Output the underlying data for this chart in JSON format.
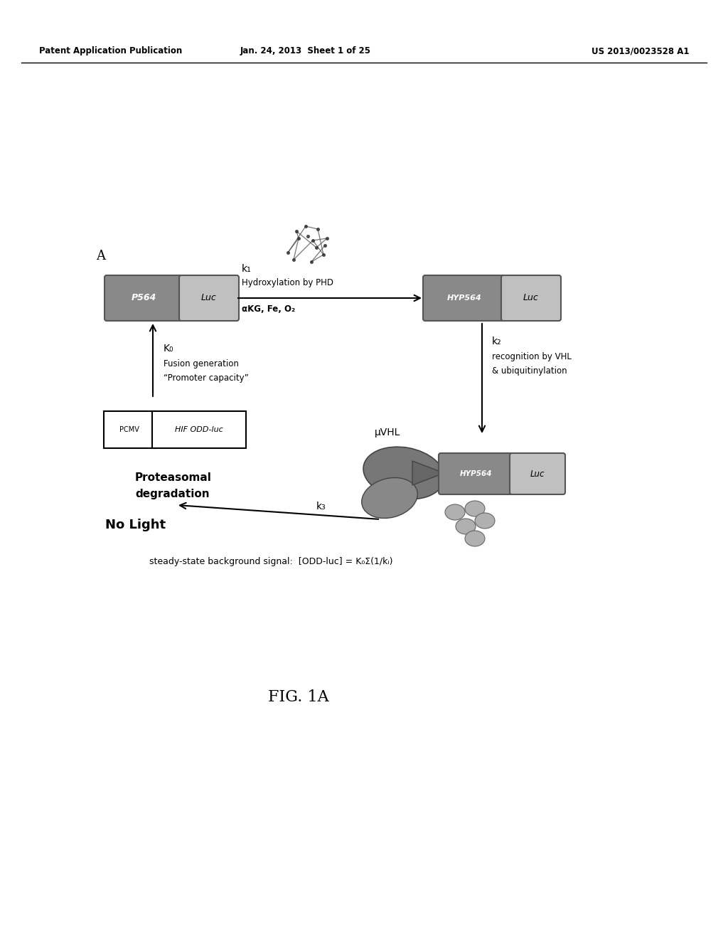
{
  "header_left": "Patent Application Publication",
  "header_middle": "Jan. 24, 2013  Sheet 1 of 25",
  "header_right": "US 2013/0023528 A1",
  "label_A": "A",
  "fig_label": "FIG. 1A",
  "bg_color": "#ffffff",
  "text_color": "#000000",
  "box_dark_color": "#898989",
  "box_mid_color": "#aaaaaa",
  "box_light_color": "#c0c0c0",
  "k1_label": "k₁",
  "k1_text1": "Hydroxylation by PHD",
  "k1_text2": "αKG, Fe, O₂",
  "k0_label": "K₀",
  "k0_text1": "Fusion generation",
  "k0_text2": "“Promoter capacity”",
  "k2_label": "k₂",
  "k2_text1": "recognition by VHL",
  "k2_text2": "& ubiquitinylation",
  "k3_label": "k₃",
  "k3_text1": "Proteasomal",
  "k3_text2": "degradation",
  "pvhl_label": "μVHL",
  "no_light_label": "No Light",
  "steady_state_text": "steady-state background signal:  [ODD-luc] = K₀Σ(1/kᵢ)",
  "p564_label": "P564",
  "luc_label1": "Luc",
  "hyp564_label": "HYP564",
  "luc_label2": "Luc",
  "hyp564_label2": "HYP564",
  "luc_label3": "Luc",
  "pcmv_label": "PCMV",
  "hif_odd_label": "HIF ODD-luc"
}
